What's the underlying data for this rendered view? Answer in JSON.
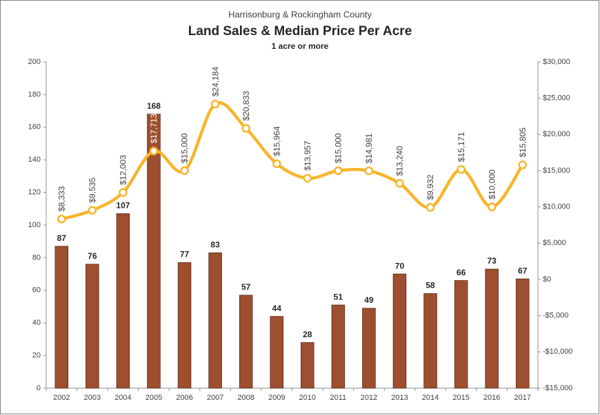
{
  "chart_data": {
    "type": "bar",
    "supertitle": "Harrisonburg & Rockingham County",
    "title": "Land Sales & Median Price Per Acre",
    "subtitle": "1 acre or more",
    "categories": [
      "2002",
      "2003",
      "2004",
      "2005",
      "2006",
      "2007",
      "2008",
      "2009",
      "2010",
      "2011",
      "2012",
      "2013",
      "2014",
      "2015",
      "2016",
      "2017"
    ],
    "series": [
      {
        "type": "bar",
        "color": "#9e4f30",
        "values": [
          87,
          76,
          107,
          168,
          77,
          83,
          57,
          44,
          28,
          51,
          49,
          70,
          58,
          66,
          73,
          67
        ]
      },
      {
        "type": "line",
        "axis": "y2",
        "color": "#f7b52c",
        "values": [
          8333,
          9535,
          12003,
          17713,
          15000,
          24184,
          20833,
          15964,
          13957,
          15000,
          14981,
          13240,
          9932,
          15171,
          10000,
          15805
        ],
        "value_labels": [
          "$8,333",
          "$9,535",
          "$12,003",
          "$17,713",
          "$15,000",
          "$24,184",
          "$20,833",
          "$15,964",
          "$13,957",
          "$15,000",
          "$14,981",
          "$13,240",
          "$9,932",
          "$15,171",
          "$10,000",
          "$15,805"
        ]
      }
    ],
    "ylim": [
      0,
      200
    ],
    "yticks": [
      0,
      20,
      40,
      60,
      80,
      100,
      120,
      140,
      160,
      180,
      200
    ],
    "y2lim": [
      -15000,
      30000
    ],
    "y2ticks": [
      {
        "value": -15000,
        "label": "-$15,000"
      },
      {
        "value": -10000,
        "label": "-$10,000"
      },
      {
        "value": -5000,
        "label": "-$5,000"
      },
      {
        "value": 0,
        "label": "$0"
      },
      {
        "value": 5000,
        "label": "$5,000"
      },
      {
        "value": 10000,
        "label": "$10,000"
      },
      {
        "value": 15000,
        "label": "$15,000"
      },
      {
        "value": 20000,
        "label": "$20,000"
      },
      {
        "value": 25000,
        "label": "$25,000"
      },
      {
        "value": 30000,
        "label": "$30,000"
      }
    ],
    "grid": false
  }
}
